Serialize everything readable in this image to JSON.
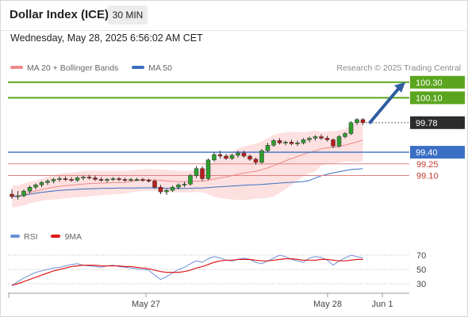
{
  "header": {
    "title": "Dollar Index (ICE)",
    "interval": "30 MIN"
  },
  "datetime": "Wednesday, May 28, 2025 6:56:02 AM CET",
  "legend": {
    "ma20_bb": "MA 20 + Bollinger Bands",
    "ma50": "MA 50"
  },
  "copyright": "Research © 2025 Trading Central",
  "indicator_legend": {
    "rsi": "RSI",
    "ma9": "9MA"
  },
  "colors": {
    "bull": "#2e9e2e",
    "bear": "#b81d1d",
    "ma20": "#f08a8a",
    "band_fill": "#fde0e0",
    "ma50": "#3a6fbf",
    "target_line": "#5aa51e",
    "pivot_line": "#3a6fc4",
    "support_line": "#e08080",
    "arrow": "#2e5d9f",
    "rsi": "#6b8fd6",
    "rsi_ma": "#e01818",
    "last_price_bg": "#2c2c2c"
  },
  "chart_data": {
    "type": "candlestick",
    "x_ticks": [
      "May 27",
      "May 28",
      "Jun 1"
    ],
    "levels": [
      {
        "value": 100.3,
        "label": "100.30",
        "kind": "target",
        "color": "#5aa51e"
      },
      {
        "value": 100.1,
        "label": "100.10",
        "kind": "target",
        "color": "#5aa51e"
      },
      {
        "value": 99.78,
        "label": "99.78",
        "kind": "last_price",
        "color": "#2c2c2c"
      },
      {
        "value": 99.4,
        "label": "99.40",
        "kind": "pivot",
        "color": "#3a6fc4"
      },
      {
        "value": 99.25,
        "label": "99.25",
        "kind": "support",
        "color": "#e08080"
      },
      {
        "value": 99.1,
        "label": "99.10",
        "kind": "support",
        "color": "#e08080"
      }
    ],
    "candles": [
      {
        "o": 98.86,
        "h": 98.92,
        "l": 98.8,
        "c": 98.83
      },
      {
        "o": 98.83,
        "h": 98.9,
        "l": 98.79,
        "c": 98.84
      },
      {
        "o": 98.84,
        "h": 98.92,
        "l": 98.82,
        "c": 98.9
      },
      {
        "o": 98.9,
        "h": 98.97,
        "l": 98.87,
        "c": 98.95
      },
      {
        "o": 98.95,
        "h": 99.0,
        "l": 98.92,
        "c": 98.98
      },
      {
        "o": 98.98,
        "h": 99.03,
        "l": 98.95,
        "c": 99.01
      },
      {
        "o": 99.01,
        "h": 99.05,
        "l": 98.98,
        "c": 99.03
      },
      {
        "o": 99.03,
        "h": 99.07,
        "l": 99.0,
        "c": 99.05
      },
      {
        "o": 99.05,
        "h": 99.09,
        "l": 99.02,
        "c": 99.06
      },
      {
        "o": 99.06,
        "h": 99.09,
        "l": 99.03,
        "c": 99.05
      },
      {
        "o": 99.05,
        "h": 99.08,
        "l": 99.02,
        "c": 99.04
      },
      {
        "o": 99.04,
        "h": 99.09,
        "l": 99.02,
        "c": 99.07
      },
      {
        "o": 99.07,
        "h": 99.1,
        "l": 99.04,
        "c": 99.08
      },
      {
        "o": 99.08,
        "h": 99.11,
        "l": 99.05,
        "c": 99.07
      },
      {
        "o": 99.07,
        "h": 99.1,
        "l": 99.03,
        "c": 99.05
      },
      {
        "o": 99.05,
        "h": 99.08,
        "l": 99.02,
        "c": 99.04
      },
      {
        "o": 99.04,
        "h": 99.07,
        "l": 99.01,
        "c": 99.05
      },
      {
        "o": 99.05,
        "h": 99.08,
        "l": 99.03,
        "c": 99.06
      },
      {
        "o": 99.06,
        "h": 99.08,
        "l": 99.03,
        "c": 99.05
      },
      {
        "o": 99.05,
        "h": 99.07,
        "l": 99.02,
        "c": 99.04
      },
      {
        "o": 99.04,
        "h": 99.07,
        "l": 99.02,
        "c": 99.05
      },
      {
        "o": 99.05,
        "h": 99.07,
        "l": 99.03,
        "c": 99.05
      },
      {
        "o": 99.05,
        "h": 99.07,
        "l": 99.02,
        "c": 99.04
      },
      {
        "o": 99.04,
        "h": 99.06,
        "l": 99.01,
        "c": 99.03
      },
      {
        "o": 99.03,
        "h": 99.05,
        "l": 98.93,
        "c": 98.95
      },
      {
        "o": 98.95,
        "h": 98.98,
        "l": 98.86,
        "c": 98.89
      },
      {
        "o": 98.89,
        "h": 98.93,
        "l": 98.85,
        "c": 98.91
      },
      {
        "o": 98.91,
        "h": 98.97,
        "l": 98.89,
        "c": 98.95
      },
      {
        "o": 98.95,
        "h": 99.0,
        "l": 98.92,
        "c": 98.98
      },
      {
        "o": 98.98,
        "h": 99.02,
        "l": 98.95,
        "c": 98.99
      },
      {
        "o": 98.99,
        "h": 99.12,
        "l": 98.97,
        "c": 99.1
      },
      {
        "o": 99.1,
        "h": 99.22,
        "l": 99.07,
        "c": 99.19
      },
      {
        "o": 99.19,
        "h": 99.22,
        "l": 99.03,
        "c": 99.06
      },
      {
        "o": 99.06,
        "h": 99.32,
        "l": 99.04,
        "c": 99.3
      },
      {
        "o": 99.3,
        "h": 99.4,
        "l": 99.28,
        "c": 99.37
      },
      {
        "o": 99.37,
        "h": 99.42,
        "l": 99.32,
        "c": 99.35
      },
      {
        "o": 99.35,
        "h": 99.38,
        "l": 99.3,
        "c": 99.32
      },
      {
        "o": 99.32,
        "h": 99.38,
        "l": 99.3,
        "c": 99.36
      },
      {
        "o": 99.36,
        "h": 99.42,
        "l": 99.33,
        "c": 99.39
      },
      {
        "o": 99.39,
        "h": 99.42,
        "l": 99.33,
        "c": 99.35
      },
      {
        "o": 99.35,
        "h": 99.37,
        "l": 99.29,
        "c": 99.31
      },
      {
        "o": 99.31,
        "h": 99.33,
        "l": 99.24,
        "c": 99.27
      },
      {
        "o": 99.27,
        "h": 99.44,
        "l": 99.25,
        "c": 99.42
      },
      {
        "o": 99.42,
        "h": 99.52,
        "l": 99.4,
        "c": 99.49
      },
      {
        "o": 99.49,
        "h": 99.57,
        "l": 99.47,
        "c": 99.55
      },
      {
        "o": 99.55,
        "h": 99.58,
        "l": 99.5,
        "c": 99.52
      },
      {
        "o": 99.52,
        "h": 99.55,
        "l": 99.49,
        "c": 99.53
      },
      {
        "o": 99.53,
        "h": 99.56,
        "l": 99.49,
        "c": 99.51
      },
      {
        "o": 99.51,
        "h": 99.55,
        "l": 99.48,
        "c": 99.52
      },
      {
        "o": 99.52,
        "h": 99.58,
        "l": 99.5,
        "c": 99.56
      },
      {
        "o": 99.56,
        "h": 99.6,
        "l": 99.53,
        "c": 99.58
      },
      {
        "o": 99.58,
        "h": 99.62,
        "l": 99.55,
        "c": 99.6
      },
      {
        "o": 99.6,
        "h": 99.63,
        "l": 99.56,
        "c": 99.58
      },
      {
        "o": 99.58,
        "h": 99.61,
        "l": 99.54,
        "c": 99.56
      },
      {
        "o": 99.56,
        "h": 99.58,
        "l": 99.45,
        "c": 99.48
      },
      {
        "o": 99.48,
        "h": 99.62,
        "l": 99.46,
        "c": 99.6
      },
      {
        "o": 99.6,
        "h": 99.66,
        "l": 99.58,
        "c": 99.64
      },
      {
        "o": 99.64,
        "h": 99.8,
        "l": 99.62,
        "c": 99.78
      },
      {
        "o": 99.78,
        "h": 99.84,
        "l": 99.75,
        "c": 99.82
      },
      {
        "o": 99.82,
        "h": 99.84,
        "l": 99.75,
        "c": 99.78
      }
    ],
    "rsi_axis_ticks": [
      70,
      50,
      30
    ],
    "rsi": [
      27,
      33,
      38,
      42,
      46,
      48,
      50,
      52,
      53,
      55,
      57,
      58,
      56,
      55,
      54,
      53,
      55,
      56,
      54,
      53,
      52,
      51,
      50,
      49,
      42,
      36,
      40,
      45,
      50,
      53,
      58,
      62,
      60,
      65,
      68,
      66,
      63,
      62,
      64,
      66,
      64,
      60,
      58,
      62,
      66,
      70,
      68,
      64,
      62,
      60,
      66,
      68,
      67,
      63,
      56,
      62,
      66,
      70,
      68,
      66
    ],
    "rsi_ma": [
      28,
      30,
      33,
      36,
      39,
      42,
      45,
      48,
      50,
      52,
      54,
      55,
      56,
      56,
      56,
      55,
      55,
      55,
      55,
      54,
      54,
      53,
      52,
      51,
      49,
      47,
      46,
      46,
      46,
      47,
      49,
      52,
      54,
      57,
      60,
      62,
      63,
      63,
      64,
      64,
      64,
      63,
      62,
      62,
      63,
      64,
      65,
      65,
      64,
      63,
      63,
      63,
      64,
      64,
      63,
      62,
      62,
      63,
      64,
      64
    ]
  }
}
